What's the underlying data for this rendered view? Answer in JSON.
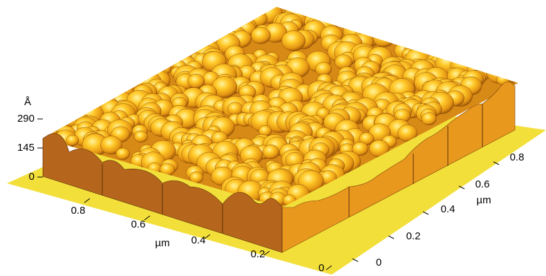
{
  "z_axis": {
    "unit": "Å",
    "ticks": [
      290,
      145,
      0
    ]
  },
  "x_axis": {
    "unit": "µm",
    "ticks": [
      0.8,
      0.6,
      0.4,
      0.2,
      0
    ]
  },
  "y_axis": {
    "unit": "µm",
    "ticks": [
      0,
      0.2,
      0.4,
      0.6,
      0.8
    ]
  }
}
